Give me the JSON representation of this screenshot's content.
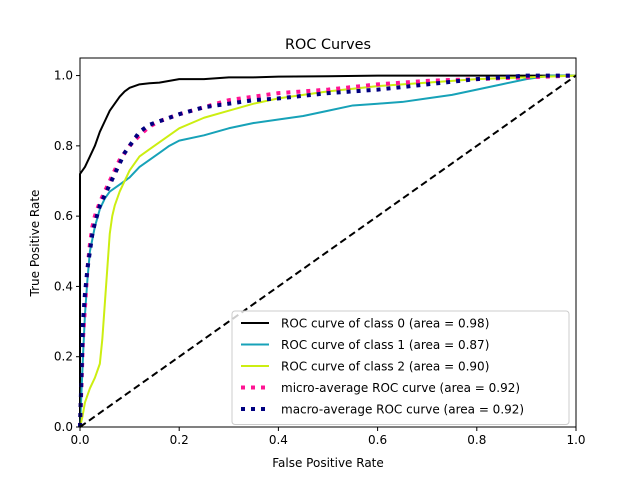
{
  "chart_data": {
    "type": "line",
    "title": "ROC Curves",
    "xlabel": "False Positive Rate",
    "ylabel": "True Positive Rate",
    "xlim": [
      0.0,
      1.0
    ],
    "ylim": [
      0.0,
      1.05
    ],
    "x_ticks": [
      "0.0",
      "0.2",
      "0.4",
      "0.6",
      "0.8",
      "1.0"
    ],
    "y_ticks": [
      "0.0",
      "0.2",
      "0.4",
      "0.6",
      "0.8",
      "1.0"
    ],
    "grid": false,
    "legend_position": "lower-right",
    "series": [
      {
        "name": "ROC curve of class 0 (area = 0.98)",
        "color": "#000000",
        "dash": "solid",
        "x": [
          0.0,
          0.0,
          0.01,
          0.02,
          0.03,
          0.04,
          0.05,
          0.06,
          0.07,
          0.08,
          0.09,
          0.1,
          0.11,
          0.12,
          0.14,
          0.16,
          0.18,
          0.2,
          0.25,
          0.3,
          0.35,
          0.4,
          0.5,
          0.6,
          0.7,
          0.8,
          0.9,
          1.0
        ],
        "y": [
          0.0,
          0.72,
          0.74,
          0.77,
          0.8,
          0.84,
          0.87,
          0.9,
          0.92,
          0.94,
          0.955,
          0.965,
          0.97,
          0.975,
          0.978,
          0.98,
          0.985,
          0.99,
          0.99,
          0.995,
          0.995,
          0.997,
          0.998,
          1.0,
          1.0,
          1.0,
          1.0,
          1.0
        ]
      },
      {
        "name": "ROC curve of class 1 (area = 0.87)",
        "color": "#17a2b8",
        "dash": "solid",
        "x": [
          0.0,
          0.003,
          0.006,
          0.01,
          0.015,
          0.02,
          0.03,
          0.04,
          0.05,
          0.06,
          0.07,
          0.08,
          0.1,
          0.12,
          0.14,
          0.16,
          0.18,
          0.2,
          0.25,
          0.3,
          0.35,
          0.4,
          0.45,
          0.5,
          0.55,
          0.6,
          0.65,
          0.7,
          0.75,
          0.8,
          0.85,
          0.9,
          0.95,
          1.0
        ],
        "y": [
          0.0,
          0.1,
          0.2,
          0.32,
          0.42,
          0.5,
          0.57,
          0.62,
          0.65,
          0.67,
          0.68,
          0.69,
          0.71,
          0.74,
          0.76,
          0.78,
          0.8,
          0.815,
          0.83,
          0.85,
          0.865,
          0.875,
          0.885,
          0.9,
          0.915,
          0.92,
          0.925,
          0.935,
          0.945,
          0.96,
          0.975,
          0.99,
          1.0,
          1.0
        ]
      },
      {
        "name": "ROC curve of class 2 (area = 0.90)",
        "color": "#ccee11",
        "dash": "solid",
        "x": [
          0.0,
          0.005,
          0.01,
          0.02,
          0.03,
          0.04,
          0.045,
          0.05,
          0.055,
          0.06,
          0.065,
          0.07,
          0.08,
          0.09,
          0.1,
          0.12,
          0.14,
          0.16,
          0.18,
          0.2,
          0.25,
          0.3,
          0.35,
          0.4,
          0.5,
          0.6,
          0.7,
          0.8,
          0.9,
          1.0
        ],
        "y": [
          0.0,
          0.03,
          0.07,
          0.11,
          0.14,
          0.18,
          0.25,
          0.35,
          0.45,
          0.55,
          0.6,
          0.63,
          0.67,
          0.7,
          0.73,
          0.77,
          0.79,
          0.81,
          0.83,
          0.85,
          0.88,
          0.9,
          0.92,
          0.935,
          0.955,
          0.97,
          0.98,
          0.99,
          0.995,
          1.0
        ]
      },
      {
        "name": "micro-average ROC curve (area = 0.92)",
        "color": "#ff1493",
        "dash": "dotted",
        "x": [
          0.0,
          0.003,
          0.006,
          0.01,
          0.015,
          0.02,
          0.025,
          0.03,
          0.04,
          0.05,
          0.06,
          0.07,
          0.08,
          0.09,
          0.1,
          0.12,
          0.14,
          0.16,
          0.18,
          0.2,
          0.25,
          0.3,
          0.35,
          0.4,
          0.5,
          0.6,
          0.7,
          0.8,
          0.9,
          1.0
        ],
        "y": [
          0.0,
          0.12,
          0.25,
          0.34,
          0.45,
          0.52,
          0.57,
          0.6,
          0.64,
          0.67,
          0.7,
          0.73,
          0.76,
          0.78,
          0.8,
          0.83,
          0.855,
          0.87,
          0.88,
          0.89,
          0.91,
          0.93,
          0.94,
          0.95,
          0.96,
          0.975,
          0.985,
          0.99,
          0.995,
          1.0
        ]
      },
      {
        "name": "macro-average ROC curve (area = 0.92)",
        "color": "#000080",
        "dash": "dotted",
        "x": [
          0.0,
          0.003,
          0.006,
          0.01,
          0.015,
          0.02,
          0.025,
          0.03,
          0.04,
          0.05,
          0.06,
          0.07,
          0.08,
          0.09,
          0.1,
          0.12,
          0.14,
          0.16,
          0.18,
          0.2,
          0.25,
          0.3,
          0.35,
          0.4,
          0.5,
          0.6,
          0.7,
          0.8,
          0.9,
          1.0
        ],
        "y": [
          0.0,
          0.15,
          0.3,
          0.38,
          0.45,
          0.5,
          0.55,
          0.58,
          0.63,
          0.66,
          0.69,
          0.72,
          0.75,
          0.78,
          0.8,
          0.84,
          0.86,
          0.87,
          0.88,
          0.89,
          0.91,
          0.92,
          0.93,
          0.935,
          0.95,
          0.96,
          0.975,
          0.99,
          1.0,
          1.0
        ]
      },
      {
        "name": "",
        "color": "#000000",
        "dash": "dashed",
        "x": [
          0.0,
          1.0
        ],
        "y": [
          0.0,
          1.0
        ]
      }
    ]
  }
}
